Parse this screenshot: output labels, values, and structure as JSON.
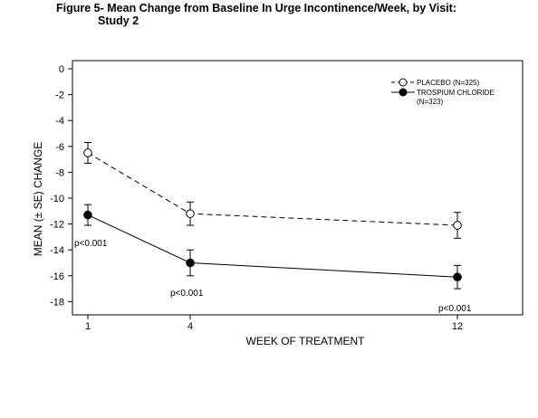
{
  "figure": {
    "title_line1": "Figure 5- Mean Change from Baseline In Urge Incontinence/Week, by Visit:",
    "title_line2": "Study 2"
  },
  "chart_data": {
    "type": "line",
    "x": [
      1,
      4,
      12
    ],
    "xticks": [
      "1",
      "4",
      "12"
    ],
    "xlabel": "WEEK OF TREATMENT",
    "ylabel": "MEAN (± SE) CHANGE",
    "ylim": [
      -19,
      0
    ],
    "yticks": [
      0,
      -2,
      -4,
      -6,
      -8,
      -10,
      -12,
      -14,
      -16,
      -18
    ],
    "grid": false,
    "legend_position": "top-right",
    "series": [
      {
        "name": "PLACEBO (N=325)",
        "values": [
          -6.5,
          -11.2,
          -12.1
        ],
        "se": [
          0.8,
          0.9,
          1.0
        ],
        "line_style": "dashed",
        "marker": "open-circle"
      },
      {
        "name": "TROSPIUM CHLORIDE",
        "name_line2": "(N=323)",
        "values": [
          -11.3,
          -15.0,
          -16.1
        ],
        "se": [
          0.8,
          1.0,
          0.9
        ],
        "line_style": "solid",
        "marker": "filled-circle"
      }
    ],
    "annotations": [
      "p<0.001",
      "p<0.001",
      "p<0.001"
    ]
  }
}
